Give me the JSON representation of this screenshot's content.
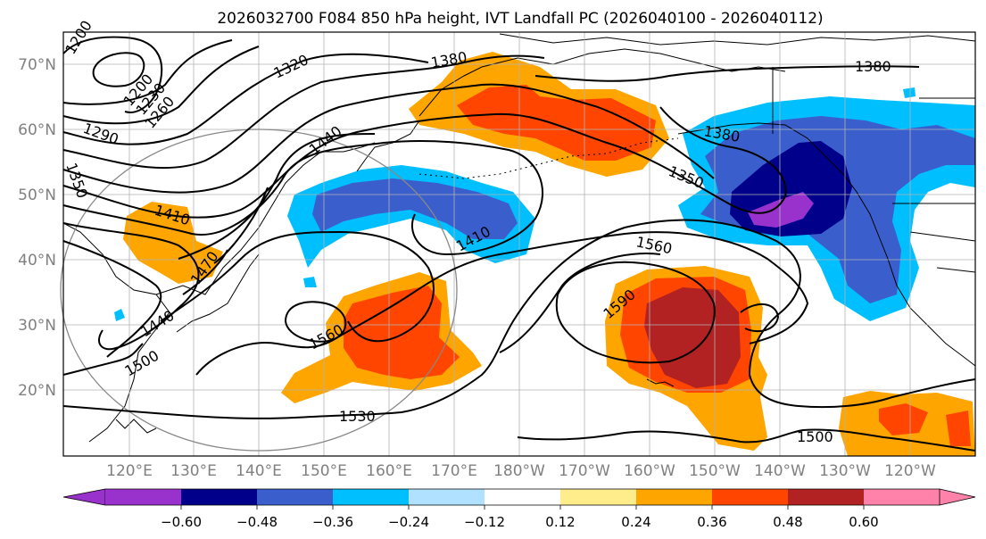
{
  "title": "2026032700 F084 850 hPa height, IVT Landfall PC (2026040100 - 2026040112)",
  "lat_labels": [
    "70°N",
    "60°N",
    "50°N",
    "40°N",
    "30°N",
    "20°N"
  ],
  "lon_labels": [
    "120°E",
    "130°E",
    "140°E",
    "150°E",
    "160°E",
    "170°E",
    "180°W",
    "170°W",
    "160°W",
    "150°W",
    "140°W",
    "130°W",
    "120°W"
  ],
  "contour_labels": [
    {
      "text": "1200",
      "name": "contour-label-1200-a"
    },
    {
      "text": "1200",
      "name": "contour-label-1200-b"
    },
    {
      "text": "1230",
      "name": "contour-label-1230"
    },
    {
      "text": "1260",
      "name": "contour-label-1260"
    },
    {
      "text": "1290",
      "name": "contour-label-1290"
    },
    {
      "text": "1320",
      "name": "contour-label-1320"
    },
    {
      "text": "1350",
      "name": "contour-label-1350-west"
    },
    {
      "text": "1380",
      "name": "contour-label-1380-a"
    },
    {
      "text": "1380",
      "name": "contour-label-1380-b"
    },
    {
      "text": "1380",
      "name": "contour-label-1380-c"
    },
    {
      "text": "1350",
      "name": "contour-label-1350-east"
    },
    {
      "text": "1410",
      "name": "contour-label-1410-a"
    },
    {
      "text": "1410",
      "name": "contour-label-1410-b"
    },
    {
      "text": "1440",
      "name": "contour-label-1440-a"
    },
    {
      "text": "1440",
      "name": "contour-label-1440-b"
    },
    {
      "text": "1470",
      "name": "contour-label-1470"
    },
    {
      "text": "1500",
      "name": "contour-label-1500-a"
    },
    {
      "text": "1500",
      "name": "contour-label-1500-b"
    },
    {
      "text": "1530",
      "name": "contour-label-1530"
    },
    {
      "text": "1560",
      "name": "contour-label-1560-a"
    },
    {
      "text": "1560",
      "name": "contour-label-1560-b"
    },
    {
      "text": "1590",
      "name": "contour-label-1590"
    }
  ],
  "colorbar": {
    "ticks": [
      "−0.60",
      "−0.48",
      "−0.36",
      "−0.24",
      "−0.12",
      "0.12",
      "0.24",
      "0.36",
      "0.48",
      "0.60"
    ],
    "colors": [
      "#9932cc",
      "#00008b",
      "#3a5fcd",
      "#00bfff",
      "#b0e2ff",
      "#ffffff",
      "#ffec8b",
      "#ffa500",
      "#ff4500",
      "#b22222",
      "#ff82ab"
    ]
  },
  "shading_colors": {
    "neg_060": "#9932cc",
    "neg_048": "#00008b",
    "neg_036": "#3a5fcd",
    "neg_024": "#00bfff",
    "pos_024": "#ffa500",
    "pos_036": "#ff4500",
    "pos_048": "#b22222",
    "pos_060": "#ff82ab"
  }
}
